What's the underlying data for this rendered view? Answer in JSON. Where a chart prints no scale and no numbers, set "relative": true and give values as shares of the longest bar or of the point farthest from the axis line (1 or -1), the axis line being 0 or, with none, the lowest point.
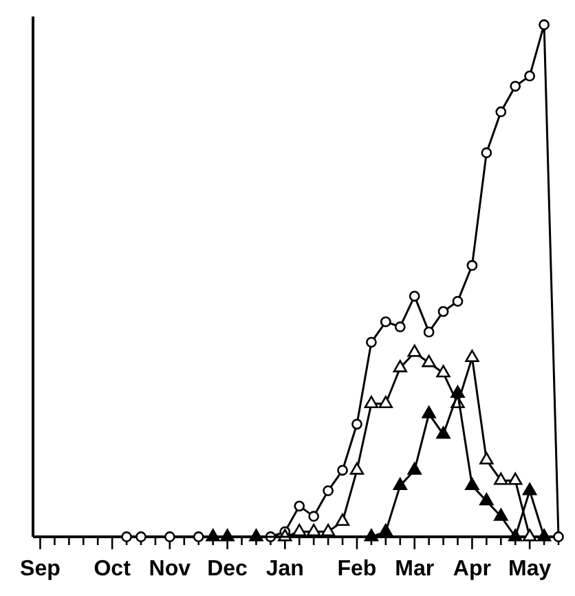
{
  "chart_data": {
    "type": "line",
    "relative": true,
    "line_style": "solid",
    "categories": [
      "Sep",
      null,
      null,
      null,
      null,
      "Oct",
      null,
      null,
      null,
      "Nov",
      null,
      null,
      null,
      "Dec",
      null,
      null,
      null,
      "Jan",
      null,
      null,
      null,
      null,
      "Feb",
      null,
      null,
      null,
      "Mar",
      null,
      null,
      null,
      "Apr",
      null,
      null,
      null,
      "May",
      null,
      null
    ],
    "series": [
      {
        "color": "#000000",
        "marker": "circle-open",
        "values": [
          null,
          null,
          null,
          null,
          null,
          null,
          0,
          0,
          null,
          0,
          null,
          0,
          null,
          null,
          null,
          null,
          0,
          0.01,
          0.06,
          0.04,
          0.09,
          0.13,
          0.22,
          0.38,
          0.42,
          0.41,
          0.47,
          0.4,
          0.44,
          0.46,
          0.53,
          0.75,
          0.83,
          0.88,
          0.9,
          1,
          0
        ]
      },
      {
        "color": "#000000",
        "marker": "triangle-open",
        "values": [
          null,
          null,
          null,
          null,
          null,
          null,
          null,
          null,
          null,
          null,
          null,
          null,
          null,
          null,
          null,
          null,
          null,
          0,
          0.01,
          0.01,
          0.01,
          0.03,
          0.13,
          0.26,
          0.26,
          0.33,
          0.36,
          0.34,
          0.32,
          0.26,
          0.35,
          0.15,
          0.11,
          0.11,
          0,
          null,
          null
        ]
      },
      {
        "color": "#000000",
        "marker": "triangle",
        "values": [
          null,
          null,
          null,
          null,
          null,
          null,
          null,
          null,
          null,
          null,
          null,
          null,
          0,
          0,
          null,
          0,
          null,
          null,
          null,
          null,
          null,
          null,
          null,
          0,
          0.01,
          0.1,
          0.13,
          0.24,
          0.2,
          0.28,
          0.1,
          0.07,
          0.04,
          0,
          0.09,
          0,
          null
        ]
      }
    ]
  }
}
